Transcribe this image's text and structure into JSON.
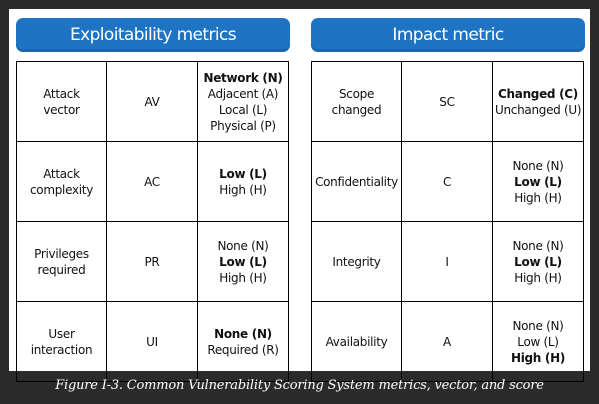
{
  "exploitability": {
    "title": "Exploitability metrics",
    "rows": [
      {
        "name": "Attack\nvector",
        "abbr": "AV",
        "values": [
          {
            "text": "Network (N)",
            "bold": true
          },
          {
            "text": "Adjacent (A)",
            "bold": false
          },
          {
            "text": "Local (L)",
            "bold": false
          },
          {
            "text": "Physical (P)",
            "bold": false
          }
        ]
      },
      {
        "name": "Attack\ncomplexity",
        "abbr": "AC",
        "values": [
          {
            "text": "Low (L)",
            "bold": true
          },
          {
            "text": "High (H)",
            "bold": false
          }
        ]
      },
      {
        "name": "Privileges\nrequired",
        "abbr": "PR",
        "values": [
          {
            "text": "None (N)",
            "bold": false
          },
          {
            "text": "Low (L)",
            "bold": true
          },
          {
            "text": "High (H)",
            "bold": false
          }
        ]
      },
      {
        "name": "User\ninteraction",
        "abbr": "UI",
        "values": [
          {
            "text": "None (N)",
            "bold": true
          },
          {
            "text": "Required (R)",
            "bold": false
          }
        ]
      }
    ]
  },
  "impact": {
    "title": "Impact metric",
    "rows": [
      {
        "name": "Scope\nchanged",
        "abbr": "SC",
        "values": [
          {
            "text": "Changed (C)",
            "bold": true
          },
          {
            "text": "Unchanged (U)",
            "bold": false
          }
        ]
      },
      {
        "name": "Confidentiality",
        "abbr": "C",
        "values": [
          {
            "text": "None (N)",
            "bold": false
          },
          {
            "text": "Low (L)",
            "bold": true
          },
          {
            "text": "High (H)",
            "bold": false
          }
        ]
      },
      {
        "name": "Integrity",
        "abbr": "I",
        "values": [
          {
            "text": "None (N)",
            "bold": false
          },
          {
            "text": "Low (L)",
            "bold": true
          },
          {
            "text": "High (H)",
            "bold": false
          }
        ]
      },
      {
        "name": "Availability",
        "abbr": "A",
        "values": [
          {
            "text": "None (N)",
            "bold": false
          },
          {
            "text": "Low (L)",
            "bold": false
          },
          {
            "text": "High (H)",
            "bold": true
          }
        ]
      }
    ]
  },
  "caption": "Figure I-3. Common Vulnerability Scoring System metrics, vector, and score",
  "colors": {
    "header_blue": "#1f73c3",
    "background": "#2b2b2b",
    "figure_bg": "#ffffff"
  }
}
